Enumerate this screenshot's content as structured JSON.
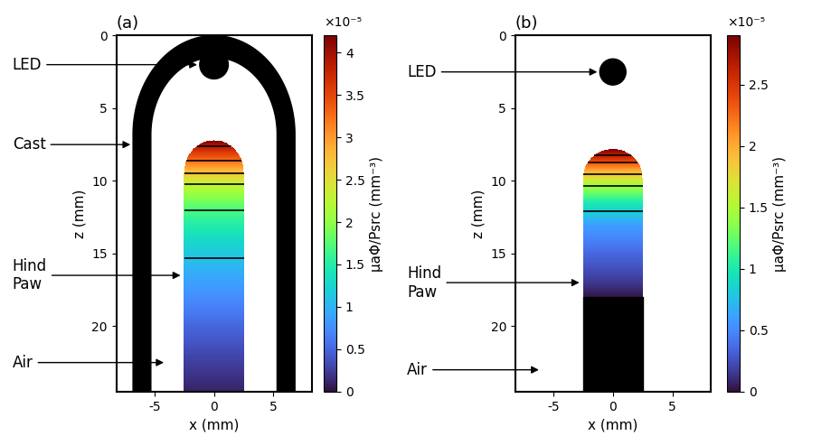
{
  "chart_data": [
    {
      "type": "heatmap",
      "title": "(a)",
      "x_label": "x (mm)",
      "y_label": "z (mm)",
      "xlim": [
        -8.2,
        8.2
      ],
      "ylim": [
        24.5,
        0
      ],
      "xticks": [
        -5,
        0,
        5
      ],
      "yticks": [
        0,
        5,
        10,
        15,
        20
      ],
      "annotations": [
        "LED",
        "Cast",
        "Hind\nPaw",
        "Air"
      ],
      "z": [
        7.2,
        8,
        9,
        10,
        11,
        12,
        14,
        16,
        18,
        20,
        22,
        24.5
      ],
      "values": [
        4.2,
        3.6,
        3.0,
        2.4,
        2.0,
        1.7,
        1.3,
        1.0,
        0.75,
        0.5,
        0.3,
        0.1
      ],
      "contour_levels": [
        1.1,
        1.7,
        2.3,
        2.7,
        3.25,
        3.9
      ],
      "colorbar": {
        "label": "μaΦ/Psrc (mm⁻³)",
        "lim": [
          0,
          4.2
        ],
        "ticks": [
          0,
          0.5,
          1,
          1.5,
          2,
          2.5,
          3,
          3.5,
          4
        ],
        "multiplier": "×10⁻⁵"
      }
    },
    {
      "type": "heatmap",
      "title": "(b)",
      "x_label": "x (mm)",
      "y_label": "z (mm)",
      "xlim": [
        -8.2,
        8.2
      ],
      "ylim": [
        24.5,
        0
      ],
      "xticks": [
        -5,
        0,
        5
      ],
      "yticks": [
        0,
        5,
        10,
        15,
        20
      ],
      "annotations": [
        "LED",
        "Hind\nPaw",
        "Air"
      ],
      "z": [
        7.8,
        8.5,
        9.3,
        10.2,
        11.5,
        13,
        15,
        17,
        18,
        18.2,
        24.5
      ],
      "values": [
        2.9,
        2.5,
        2.0,
        1.5,
        1.0,
        0.6,
        0.35,
        0.15,
        0.02,
        null,
        null
      ],
      "contour_levels": [
        0.85,
        1.45,
        1.85,
        2.35,
        2.65
      ],
      "colorbar": {
        "label": "μaΦ/Psrc (mm⁻³)",
        "lim": [
          0,
          2.9
        ],
        "ticks": [
          0,
          0.5,
          1,
          1.5,
          2,
          2.5
        ],
        "multiplier": "×10⁻⁵"
      }
    }
  ]
}
